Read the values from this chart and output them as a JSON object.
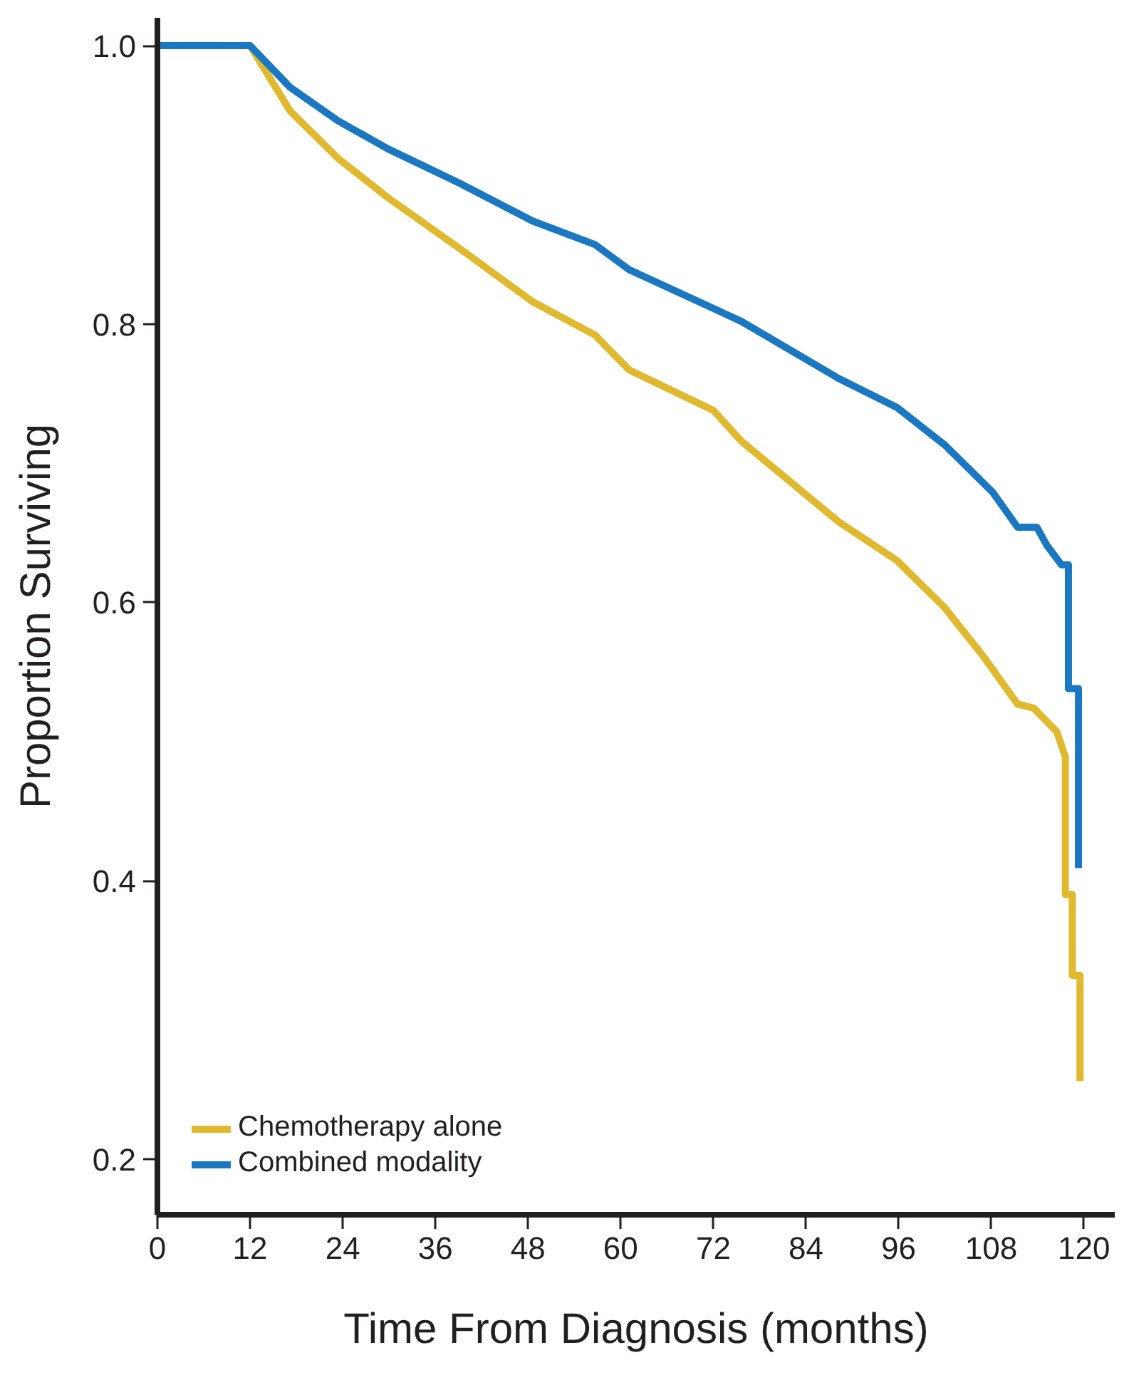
{
  "chart_data": {
    "type": "line",
    "xlabel": "Time From Diagnosis (months)",
    "ylabel": "Proportion Surviving",
    "xlim": [
      0,
      124
    ],
    "ylim": [
      0.16,
      1.02
    ],
    "xticks": [
      0,
      12,
      24,
      36,
      48,
      60,
      72,
      84,
      96,
      108,
      120
    ],
    "yticks": [
      0.2,
      0.4,
      0.6,
      0.8,
      {
        "value": 1,
        "label": "1.0"
      }
    ],
    "grid": false,
    "legend": "bottom left",
    "marker": "none",
    "line_style": "solid",
    "series": [
      {
        "name": "Chemotherapy alone",
        "color": "#e0b92f",
        "x": [
          0,
          12,
          17.2,
          23.4,
          29.8,
          39.2,
          48.6,
          56.7,
          61.1,
          72,
          75.6,
          88.2,
          95.8,
          102,
          107,
          111.4,
          113.5,
          116.5,
          117.6,
          117.6,
          118.5,
          118.5,
          119.5,
          119.5
        ],
        "values": [
          1.0,
          1.0,
          0.953,
          0.919,
          0.891,
          0.854,
          0.816,
          0.792,
          0.767,
          0.738,
          0.716,
          0.658,
          0.63,
          0.596,
          0.561,
          0.527,
          0.524,
          0.507,
          0.489,
          0.39,
          0.39,
          0.332,
          0.332,
          0.256
        ]
      },
      {
        "name": "Combined modality",
        "color": "#1a78c2",
        "x": [
          0,
          12,
          17.2,
          23.4,
          29.8,
          39.2,
          48.6,
          56.7,
          61.1,
          75.6,
          88.2,
          95.8,
          102,
          108.2,
          111.4,
          113.9,
          115.2,
          117.1,
          118,
          118,
          119.3,
          119.3
        ],
        "values": [
          1.0,
          1.0,
          0.97,
          0.946,
          0.926,
          0.901,
          0.874,
          0.857,
          0.839,
          0.802,
          0.761,
          0.74,
          0.713,
          0.679,
          0.654,
          0.654,
          0.641,
          0.627,
          0.627,
          0.538,
          0.538,
          0.409
        ]
      }
    ]
  }
}
